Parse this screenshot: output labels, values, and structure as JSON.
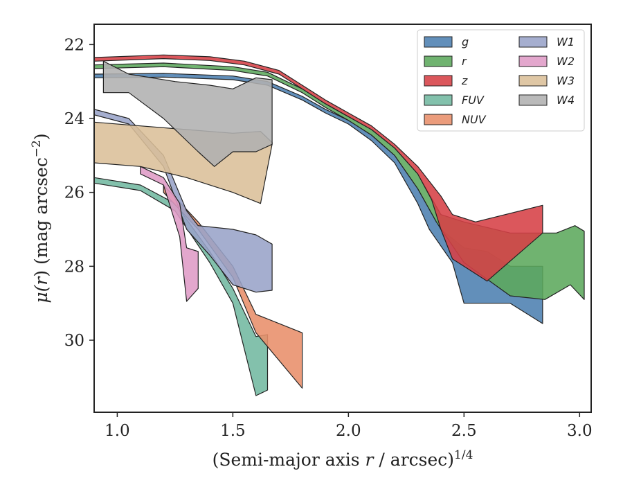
{
  "chart_data": {
    "type": "area",
    "title": "",
    "xlabel_main": "(Semi-major axis ",
    "xlabel_var": "r",
    "xlabel_tail": " / arcsec)",
    "xlabel_sup": "1/4",
    "ylabel_pre": "μ(",
    "ylabel_var": "r",
    "ylabel_mid": ") (mag arcsec",
    "ylabel_sup": "−2",
    "ylabel_post": ")",
    "xlim": [
      0.9,
      3.05
    ],
    "ylim": [
      31.95,
      21.45
    ],
    "y_inverted": true,
    "xticks": [
      1.0,
      1.5,
      2.0,
      2.5,
      3.0
    ],
    "xtick_labels": [
      "1.0",
      "1.5",
      "2.0",
      "2.5",
      "3.0"
    ],
    "yticks": [
      22,
      24,
      26,
      28,
      30
    ],
    "ytick_labels": [
      "22",
      "24",
      "26",
      "28",
      "30"
    ],
    "grid": false,
    "legend_position": "top-right",
    "legend_columns": 2,
    "series": [
      {
        "name": "g",
        "color": "#4c7fb0",
        "upper": [
          [
            0.9,
            22.8
          ],
          [
            1.2,
            22.78
          ],
          [
            1.5,
            22.85
          ],
          [
            1.65,
            23.0
          ],
          [
            1.8,
            23.4
          ],
          [
            1.9,
            23.75
          ],
          [
            2.0,
            24.05
          ],
          [
            2.1,
            24.45
          ],
          [
            2.2,
            25.0
          ],
          [
            2.3,
            25.9
          ],
          [
            2.4,
            27.0
          ],
          [
            2.5,
            27.5
          ],
          [
            2.6,
            27.6
          ],
          [
            2.7,
            28.0
          ],
          [
            2.84,
            28.0
          ]
        ],
        "lower": [
          [
            0.9,
            22.9
          ],
          [
            1.2,
            22.88
          ],
          [
            1.5,
            22.95
          ],
          [
            1.65,
            23.1
          ],
          [
            1.8,
            23.5
          ],
          [
            1.9,
            23.85
          ],
          [
            2.0,
            24.15
          ],
          [
            2.1,
            24.6
          ],
          [
            2.2,
            25.2
          ],
          [
            2.3,
            26.3
          ],
          [
            2.35,
            27.0
          ],
          [
            2.45,
            27.9
          ],
          [
            2.5,
            29.0
          ],
          [
            2.7,
            29.0
          ],
          [
            2.84,
            29.55
          ]
        ]
      },
      {
        "name": "r",
        "color": "#5ca85c",
        "upper": [
          [
            0.9,
            22.55
          ],
          [
            1.2,
            22.5
          ],
          [
            1.5,
            22.6
          ],
          [
            1.65,
            22.75
          ],
          [
            1.8,
            23.2
          ],
          [
            1.9,
            23.6
          ],
          [
            2.0,
            23.95
          ],
          [
            2.1,
            24.3
          ],
          [
            2.2,
            24.8
          ],
          [
            2.3,
            25.5
          ],
          [
            2.4,
            26.6
          ],
          [
            2.5,
            26.8
          ],
          [
            2.7,
            27.1
          ],
          [
            2.9,
            27.1
          ],
          [
            2.98,
            26.9
          ],
          [
            3.02,
            27.05
          ]
        ],
        "lower": [
          [
            0.9,
            22.65
          ],
          [
            1.2,
            22.6
          ],
          [
            1.5,
            22.7
          ],
          [
            1.65,
            22.85
          ],
          [
            1.8,
            23.3
          ],
          [
            1.9,
            23.7
          ],
          [
            2.0,
            24.05
          ],
          [
            2.1,
            24.45
          ],
          [
            2.2,
            25.0
          ],
          [
            2.3,
            25.9
          ],
          [
            2.38,
            26.8
          ],
          [
            2.5,
            27.9
          ],
          [
            2.7,
            28.8
          ],
          [
            2.85,
            28.9
          ],
          [
            2.96,
            28.5
          ],
          [
            3.02,
            28.9
          ]
        ]
      },
      {
        "name": "z",
        "color": "#d64045",
        "upper": [
          [
            0.9,
            22.35
          ],
          [
            1.2,
            22.28
          ],
          [
            1.4,
            22.33
          ],
          [
            1.55,
            22.45
          ],
          [
            1.7,
            22.7
          ],
          [
            1.8,
            23.1
          ],
          [
            1.9,
            23.5
          ],
          [
            2.0,
            23.85
          ],
          [
            2.1,
            24.2
          ],
          [
            2.2,
            24.7
          ],
          [
            2.3,
            25.3
          ],
          [
            2.4,
            26.1
          ],
          [
            2.45,
            26.6
          ],
          [
            2.55,
            26.8
          ],
          [
            2.84,
            26.35
          ]
        ],
        "lower": [
          [
            0.9,
            22.45
          ],
          [
            1.2,
            22.38
          ],
          [
            1.4,
            22.43
          ],
          [
            1.55,
            22.55
          ],
          [
            1.7,
            22.8
          ],
          [
            1.8,
            23.2
          ],
          [
            1.9,
            23.6
          ],
          [
            2.0,
            23.95
          ],
          [
            2.1,
            24.3
          ],
          [
            2.2,
            24.8
          ],
          [
            2.3,
            25.5
          ],
          [
            2.36,
            26.2
          ],
          [
            2.4,
            27.0
          ],
          [
            2.45,
            27.8
          ],
          [
            2.6,
            28.4
          ],
          [
            2.84,
            27.1
          ]
        ]
      },
      {
        "name": "FUV",
        "color": "#72b8a0",
        "upper": [
          [
            0.9,
            25.6
          ],
          [
            1.1,
            25.8
          ],
          [
            1.25,
            26.3
          ],
          [
            1.4,
            27.6
          ],
          [
            1.5,
            28.6
          ],
          [
            1.6,
            29.9
          ],
          [
            1.65,
            29.85
          ]
        ],
        "lower": [
          [
            0.9,
            25.75
          ],
          [
            1.1,
            25.95
          ],
          [
            1.25,
            26.5
          ],
          [
            1.4,
            27.9
          ],
          [
            1.5,
            29.0
          ],
          [
            1.6,
            31.5
          ],
          [
            1.65,
            31.35
          ]
        ]
      },
      {
        "name": "NUV",
        "color": "#e88e6a",
        "upper": [
          [
            1.2,
            25.8
          ],
          [
            1.35,
            26.8
          ],
          [
            1.5,
            28.0
          ],
          [
            1.6,
            29.3
          ],
          [
            1.8,
            29.8
          ]
        ],
        "lower": [
          [
            1.2,
            26.0
          ],
          [
            1.35,
            27.0
          ],
          [
            1.5,
            28.3
          ],
          [
            1.6,
            29.8
          ],
          [
            1.8,
            31.3
          ]
        ]
      },
      {
        "name": "W1",
        "color": "#98a3c8",
        "upper": [
          [
            0.9,
            23.75
          ],
          [
            1.05,
            24.0
          ],
          [
            1.2,
            25.0
          ],
          [
            1.3,
            26.5
          ],
          [
            1.35,
            26.9
          ],
          [
            1.5,
            27.0
          ],
          [
            1.6,
            27.15
          ],
          [
            1.67,
            27.4
          ]
        ],
        "lower": [
          [
            0.9,
            23.9
          ],
          [
            1.05,
            24.15
          ],
          [
            1.2,
            25.3
          ],
          [
            1.3,
            27.0
          ],
          [
            1.4,
            27.7
          ],
          [
            1.5,
            28.5
          ],
          [
            1.6,
            28.7
          ],
          [
            1.67,
            28.65
          ]
        ]
      },
      {
        "name": "W2",
        "color": "#df9bc6",
        "upper": [
          [
            1.1,
            25.3
          ],
          [
            1.2,
            25.6
          ],
          [
            1.27,
            26.3
          ],
          [
            1.3,
            27.5
          ],
          [
            1.35,
            27.6
          ]
        ],
        "lower": [
          [
            1.1,
            25.5
          ],
          [
            1.2,
            25.8
          ],
          [
            1.27,
            27.2
          ],
          [
            1.3,
            28.95
          ],
          [
            1.35,
            28.6
          ]
        ]
      },
      {
        "name": "W3",
        "color": "#dbbf98",
        "upper": [
          [
            0.9,
            24.1
          ],
          [
            1.1,
            24.2
          ],
          [
            1.3,
            24.3
          ],
          [
            1.5,
            24.4
          ],
          [
            1.62,
            24.35
          ],
          [
            1.67,
            24.65
          ]
        ],
        "lower": [
          [
            0.9,
            25.2
          ],
          [
            1.1,
            25.3
          ],
          [
            1.3,
            25.6
          ],
          [
            1.5,
            26.0
          ],
          [
            1.62,
            26.3
          ],
          [
            1.67,
            24.7
          ]
        ]
      },
      {
        "name": "W4",
        "color": "#b0b0b0",
        "upper": [
          [
            0.94,
            22.45
          ],
          [
            1.05,
            22.8
          ],
          [
            1.25,
            23.0
          ],
          [
            1.4,
            23.1
          ],
          [
            1.5,
            23.2
          ],
          [
            1.6,
            22.9
          ],
          [
            1.67,
            22.95
          ]
        ],
        "lower": [
          [
            0.94,
            23.3
          ],
          [
            1.05,
            23.3
          ],
          [
            1.2,
            24.0
          ],
          [
            1.35,
            24.9
          ],
          [
            1.42,
            25.3
          ],
          [
            1.5,
            24.9
          ],
          [
            1.6,
            24.9
          ],
          [
            1.67,
            24.7
          ]
        ]
      }
    ]
  }
}
